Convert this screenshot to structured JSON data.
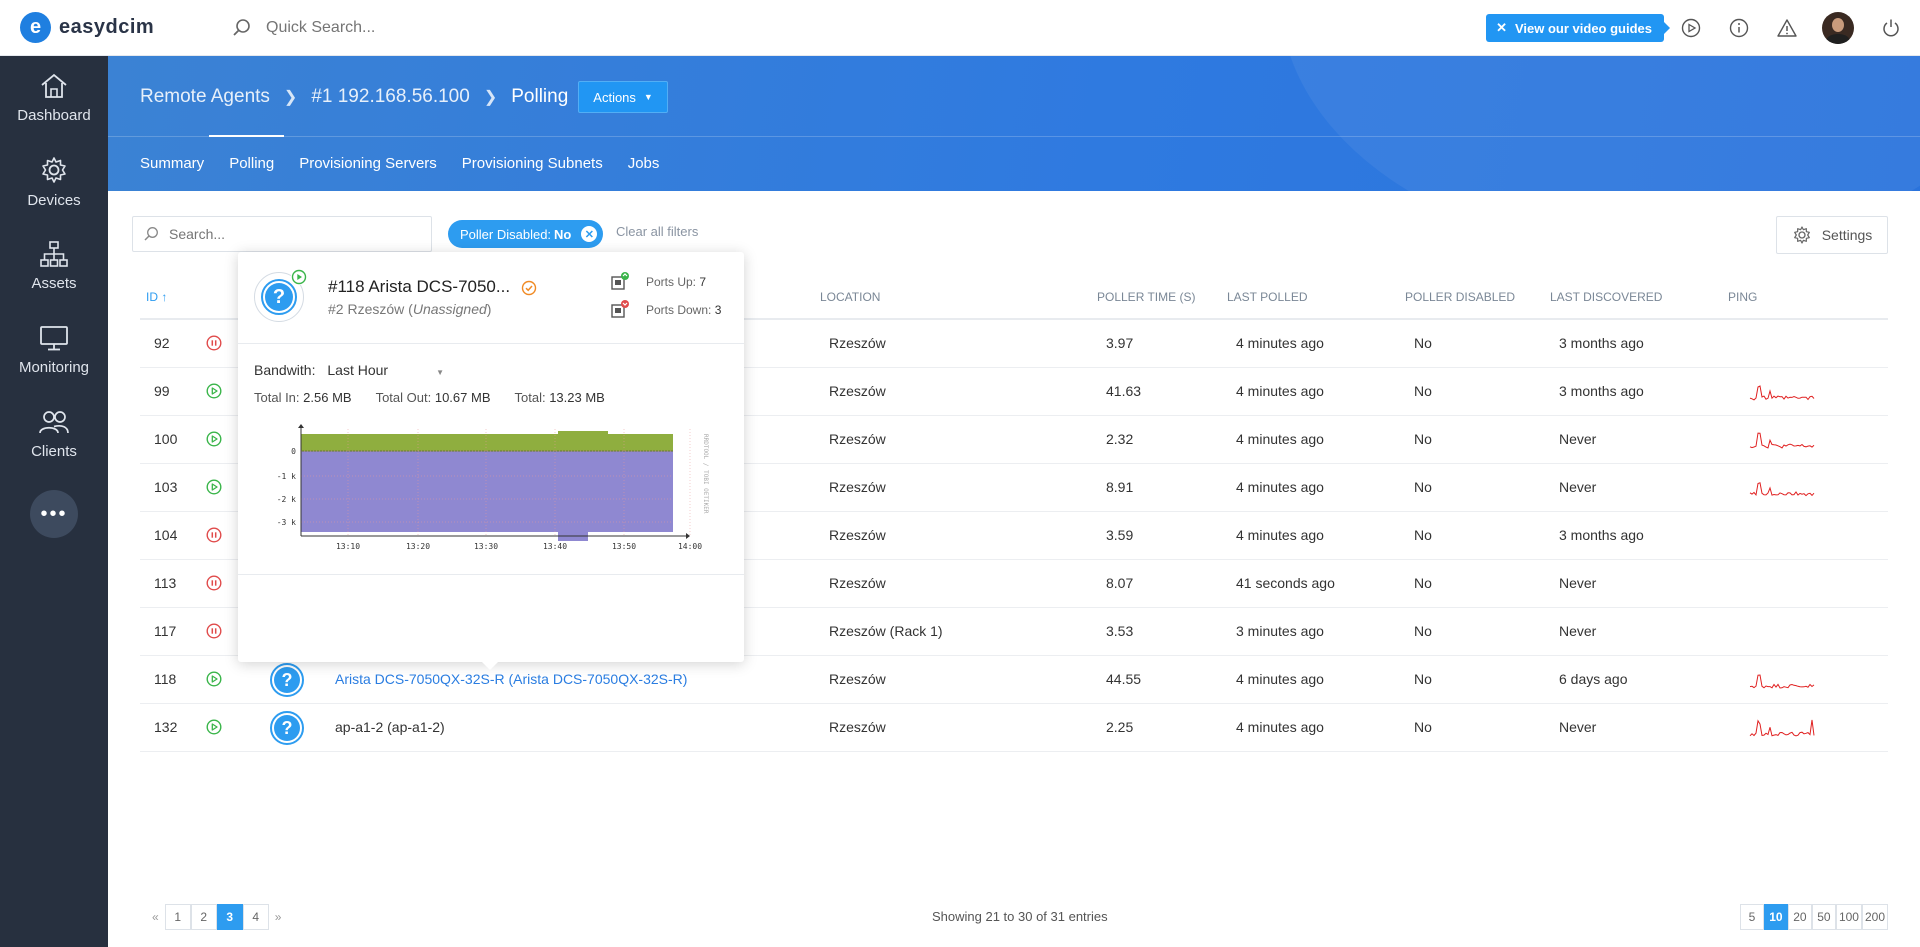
{
  "app": {
    "name": "easydcim",
    "logo_letter": "e"
  },
  "topbar": {
    "search_placeholder": "Quick Search...",
    "video_label": "View our video guides",
    "video_close": "✕"
  },
  "sidebar": {
    "items": [
      {
        "label": "Dashboard",
        "icon": "home-icon"
      },
      {
        "label": "Devices",
        "icon": "gear-icon"
      },
      {
        "label": "Assets",
        "icon": "sitemap-icon"
      },
      {
        "label": "Monitoring",
        "icon": "monitor-icon"
      },
      {
        "label": "Clients",
        "icon": "users-icon"
      }
    ],
    "more": "•••"
  },
  "breadcrumb": {
    "items": [
      "Remote Agents",
      "#1 192.168.56.100",
      "Polling"
    ],
    "actions_label": "Actions"
  },
  "tabs": [
    "Summary",
    "Polling",
    "Provisioning Servers",
    "Provisioning Subnets",
    "Jobs"
  ],
  "filters": {
    "search_placeholder": "Search...",
    "chip_label": "Poller Disabled:",
    "chip_value": "No",
    "clear_label": "Clear all filters",
    "settings_label": "Settings"
  },
  "table": {
    "headers": {
      "id": "ID",
      "location": "LOCATION",
      "poller_time": "POLLER TIME (S)",
      "last_polled": "LAST POLLED",
      "poller_disabled": "POLLER DISABLED",
      "last_discovered": "LAST DISCOVERED",
      "ping": "PING"
    },
    "rows": [
      {
        "id": "92",
        "status": "paused",
        "name": "",
        "location": "Rzeszów",
        "poller_time": "3.97",
        "last_polled": "4 minutes ago",
        "disabled": "No",
        "discovered": "3 months ago",
        "ping": false
      },
      {
        "id": "99",
        "status": "running",
        "name": "",
        "location": "Rzeszów",
        "poller_time": "41.63",
        "last_polled": "4 minutes ago",
        "disabled": "No",
        "discovered": "3 months ago",
        "ping": true
      },
      {
        "id": "100",
        "status": "running",
        "name": "",
        "location": "Rzeszów",
        "poller_time": "2.32",
        "last_polled": "4 minutes ago",
        "disabled": "No",
        "discovered": "Never",
        "ping": true
      },
      {
        "id": "103",
        "status": "running",
        "name": "",
        "location": "Rzeszów",
        "poller_time": "8.91",
        "last_polled": "4 minutes ago",
        "disabled": "No",
        "discovered": "Never",
        "ping": true
      },
      {
        "id": "104",
        "status": "paused",
        "name": "",
        "location": "Rzeszów",
        "poller_time": "3.59",
        "last_polled": "4 minutes ago",
        "disabled": "No",
        "discovered": "3 months ago",
        "ping": false
      },
      {
        "id": "113",
        "status": "paused",
        "name": "",
        "location": "Rzeszów",
        "poller_time": "8.07",
        "last_polled": "41 seconds ago",
        "disabled": "No",
        "discovered": "Never",
        "ping": false
      },
      {
        "id": "117",
        "status": "paused",
        "name": "",
        "location": "Rzeszów (Rack 1)",
        "poller_time": "3.53",
        "last_polled": "3 minutes ago",
        "disabled": "No",
        "discovered": "Never",
        "ping": false
      },
      {
        "id": "118",
        "status": "running",
        "name": "Arista DCS-7050QX-32S-R (Arista DCS-7050QX-32S-R)",
        "link": true,
        "location": "Rzeszów",
        "poller_time": "44.55",
        "last_polled": "4 minutes ago",
        "disabled": "No",
        "discovered": "6 days ago",
        "ping": true
      },
      {
        "id": "132",
        "status": "running",
        "name": "ap-a1-2 (ap-a1-2)",
        "location": "Rzeszów",
        "poller_time": "2.25",
        "last_polled": "4 minutes ago",
        "disabled": "No",
        "discovered": "Never",
        "ping": true
      }
    ]
  },
  "popup": {
    "title": "#118 Arista DCS-7050...",
    "location": "#2 Rzeszów",
    "location_note": "Unassigned",
    "ports_up_label": "Ports Up:",
    "ports_up": "7",
    "ports_down_label": "Ports Down:",
    "ports_down": "3",
    "bandwidth_label": "Bandwith:",
    "bandwidth_range": "Last Hour",
    "total_in_label": "Total In:",
    "total_in": "2.56 MB",
    "total_out_label": "Total Out:",
    "total_out": "10.67 MB",
    "total_label": "Total:",
    "total": "13.23 MB",
    "chart": {
      "y_ticks": [
        "0",
        "-1 k",
        "-2 k",
        "-3 k"
      ],
      "x_ticks": [
        "13:10",
        "13:20",
        "13:30",
        "13:40",
        "13:50",
        "14:00"
      ],
      "side_label": "RRDTOOL / TOBI OETIKER",
      "in_color": "#8fae3f",
      "out_color": "#7b73c9"
    }
  },
  "pagination": {
    "pages": [
      "1",
      "2",
      "3",
      "4"
    ],
    "current": "3",
    "prev": "«",
    "next": "»",
    "showing": "Showing 21 to 30 of 31 entries",
    "per_page": [
      "5",
      "10",
      "20",
      "50",
      "100",
      "200"
    ],
    "per_page_current": "10"
  },
  "colors": {
    "accent": "#2d9cf0",
    "running": "#3ab54a",
    "paused": "#e04b4b",
    "ping": "#e02020"
  }
}
